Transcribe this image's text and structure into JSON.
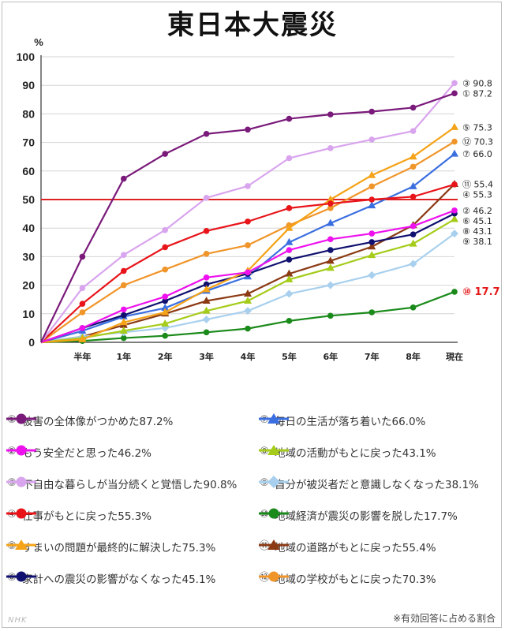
{
  "title": "東日本大震災",
  "footnote": "※有効回答に占める割合",
  "watermark": "NHK",
  "chart_data": {
    "type": "line",
    "title": "東日本大震災",
    "ylabel": "%",
    "ylim": [
      0,
      100
    ],
    "yticks": [
      "0",
      "10",
      "20",
      "30",
      "40",
      "50",
      "60",
      "70",
      "80",
      "90",
      "100"
    ],
    "categories": [
      "",
      "半年",
      "1年",
      "2年",
      "3年",
      "4年",
      "5年",
      "6年",
      "7年",
      "8年",
      "現在"
    ],
    "reference_line": {
      "value": 50,
      "color": "#dd2222"
    },
    "grid": "horizontal",
    "series": [
      {
        "num": "①",
        "name": "被害の全体像がつかめた",
        "final": "87.2%",
        "end_label": "87.2",
        "color": "#7a1a7a",
        "marker": "circle",
        "values": [
          0,
          30,
          57.3,
          66,
          73,
          74.5,
          78.3,
          79.8,
          80.8,
          82.2,
          87.2
        ]
      },
      {
        "num": "②",
        "name": "もう安全だと思った",
        "final": "46.2%",
        "end_label": "46.2",
        "color": "#ee11ee",
        "marker": "circle",
        "values": [
          0,
          5,
          11.5,
          16,
          22.7,
          24.5,
          32.3,
          36.1,
          38.1,
          40.7,
          46.2
        ]
      },
      {
        "num": "③",
        "name": "不自由な暮らしが当分続くと覚悟した",
        "final": "90.8%",
        "end_label": "90.8",
        "color": "#d9a4ee",
        "marker": "circle",
        "values": [
          0,
          19,
          30.6,
          39.3,
          50.6,
          54.7,
          64.5,
          68,
          71,
          74,
          90.8
        ]
      },
      {
        "num": "④",
        "name": "仕事がもとに戻った",
        "final": "55.3%",
        "end_label": "55.3",
        "color": "#e8141a",
        "marker": "circle",
        "values": [
          0,
          13.5,
          25,
          33.3,
          39,
          42.3,
          47,
          48.6,
          50,
          51,
          55.3
        ]
      },
      {
        "num": "⑤",
        "name": "すまいの問題が最終的に解決した",
        "final": "75.3%",
        "end_label": "75.3",
        "color": "#f5a318",
        "marker": "triangle",
        "values": [
          0,
          1,
          7,
          10.5,
          18.5,
          25,
          40,
          50,
          58.5,
          65,
          75.3
        ]
      },
      {
        "num": "⑥",
        "name": "家計への震災の影響がなくなった",
        "final": "45.1%",
        "end_label": "45.1",
        "color": "#101070",
        "marker": "circle",
        "values": [
          0,
          5,
          9.5,
          14.5,
          20.3,
          24,
          29,
          32.3,
          35.1,
          37.8,
          45.1
        ]
      },
      {
        "num": "⑦",
        "name": "毎日の生活が落ち着いた",
        "final": "66.0%",
        "end_label": "66.0",
        "color": "#3b6fe0",
        "marker": "triangle",
        "values": [
          0,
          4,
          9,
          12,
          18,
          23,
          35,
          41.7,
          47.9,
          54.6,
          66
        ]
      },
      {
        "num": "⑧",
        "name": "地域の活動がもとに戻った",
        "final": "43.1%",
        "end_label": "43.1",
        "color": "#a5cc1a",
        "marker": "triangle",
        "values": [
          0,
          1.5,
          4,
          6.5,
          11,
          14.5,
          22,
          26,
          30.5,
          34.5,
          43.1
        ]
      },
      {
        "num": "⑨",
        "name": "自分が被災者だと意識しなくなった",
        "final": "38.1%",
        "end_label": "38.1",
        "color": "#a8d0ee",
        "marker": "diamond",
        "values": [
          0,
          2,
          3.5,
          5,
          8,
          11,
          17,
          20,
          23.5,
          27.5,
          38.1
        ]
      },
      {
        "num": "⑩",
        "name": "地域経済が震災の影響を脱した",
        "final": "17.7%",
        "end_label": "17.7",
        "color": "#1a8a1a",
        "marker": "circle",
        "values": [
          0,
          0.5,
          1.5,
          2.3,
          3.5,
          4.8,
          7.5,
          9.3,
          10.5,
          12.2,
          17.7
        ]
      },
      {
        "num": "⑪",
        "name": "地域の道路がもとに戻った",
        "final": "55.4%",
        "end_label": "55.4",
        "color": "#8b3a14",
        "marker": "triangle",
        "values": [
          0,
          2,
          6,
          10,
          14.5,
          17,
          24,
          28.5,
          33.5,
          41,
          55.4
        ]
      },
      {
        "num": "⑫",
        "name": "地域の学校がもとに戻った",
        "final": "70.3%",
        "end_label": "70.3",
        "color": "#f0952a",
        "marker": "circle",
        "values": [
          0,
          10.5,
          20,
          25.5,
          31,
          34,
          41,
          47,
          54.6,
          61.5,
          70.3
        ]
      }
    ],
    "end_label_order": [
      "③",
      "①",
      "⑤",
      "⑫",
      "⑦",
      "⑪",
      "④",
      "②",
      "⑥",
      "⑧",
      "⑨",
      "⑩"
    ],
    "highlight_label": "⑩"
  }
}
